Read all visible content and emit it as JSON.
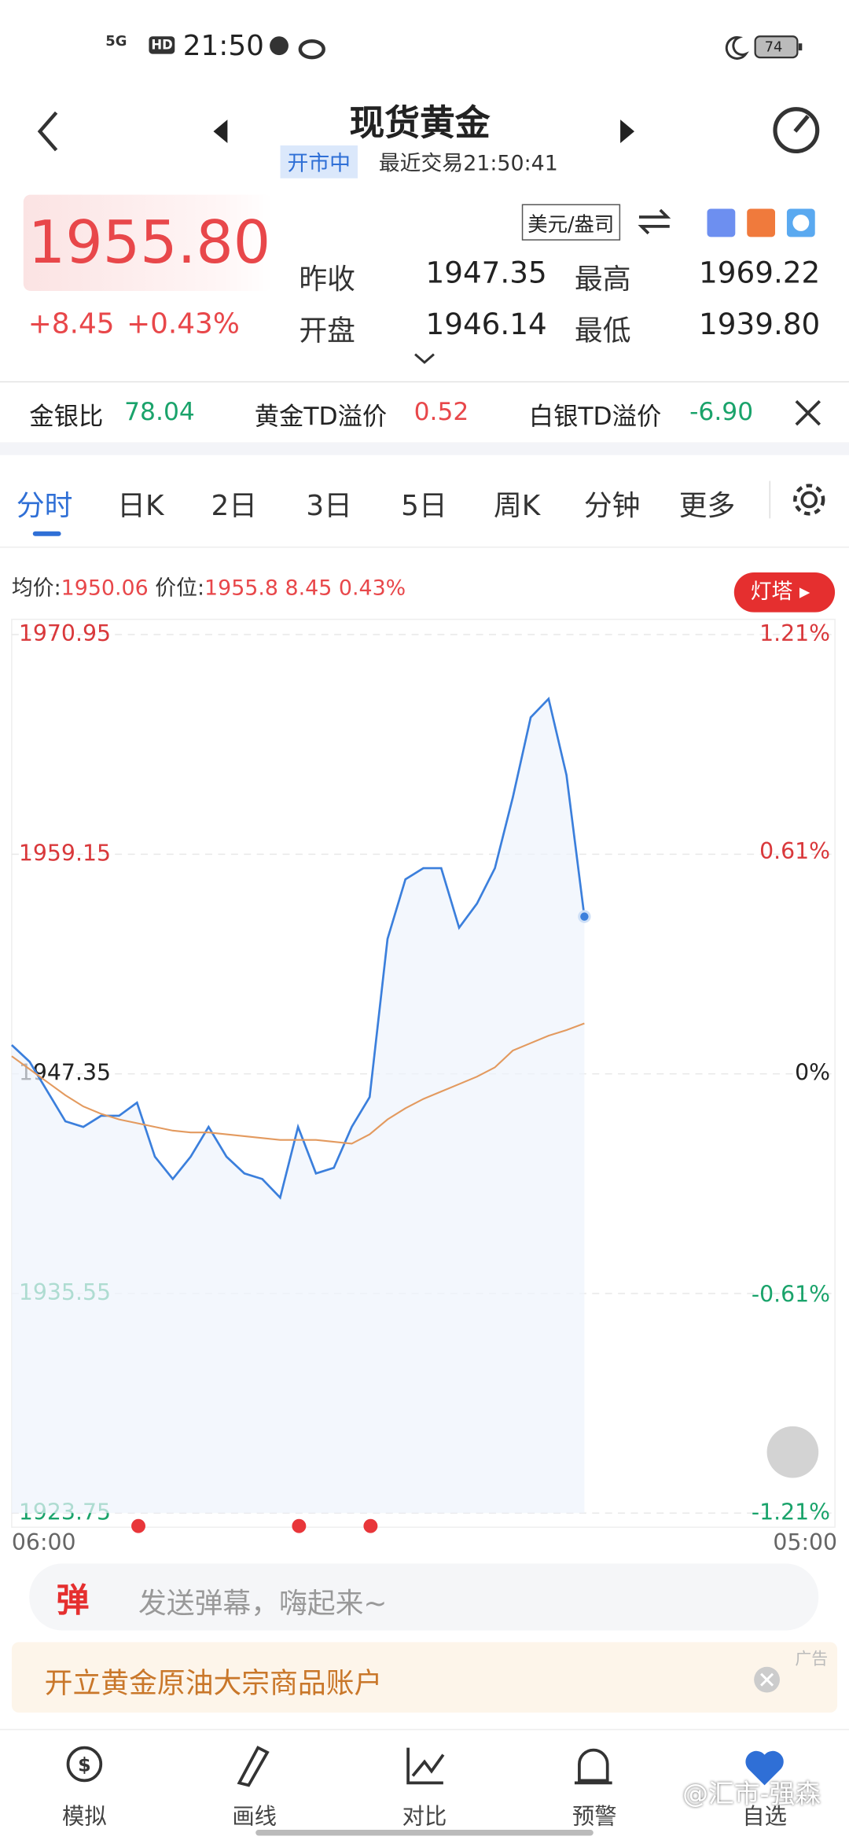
{
  "status_bar": {
    "signal": "5G",
    "hd": "HD",
    "time": "21:50",
    "battery": "74"
  },
  "header": {
    "title": "现货黄金",
    "status": "开市中",
    "last_trade": "最近交易21:50:41"
  },
  "quote": {
    "price": "1955.80",
    "change": "+8.45",
    "change_pct": "+0.43%",
    "unit": "美元/盎司",
    "stats": [
      {
        "label": "昨收",
        "value": "1947.35"
      },
      {
        "label": "最高",
        "value": "1969.22"
      },
      {
        "label": "开盘",
        "value": "1946.14"
      },
      {
        "label": "最低",
        "value": "1939.80"
      }
    ]
  },
  "ticker": [
    {
      "label": "金银比",
      "value": "78.04"
    },
    {
      "label": "黄金TD溢价",
      "value": "0.52"
    },
    {
      "label": "白银TD溢价",
      "value": "-6.90"
    }
  ],
  "tabs": [
    "分时",
    "日K",
    "2日",
    "3日",
    "5日",
    "周K",
    "分钟",
    "更多"
  ],
  "info": {
    "avg_label": "均价:",
    "avg": "1950.06",
    "price_label": "价位:",
    "price": "1955.8",
    "change": "8.45",
    "change_pct": "0.43%",
    "badge": "灯塔"
  },
  "chart_data": {
    "type": "line",
    "categories": [
      "06:00",
      null,
      null,
      null,
      null,
      null,
      null,
      null,
      null,
      null,
      null,
      null,
      null,
      null,
      null,
      null,
      null,
      null,
      null,
      null,
      null,
      null,
      null,
      null,
      null,
      null,
      null,
      null,
      null,
      null,
      null,
      null,
      null,
      null,
      null,
      null,
      null,
      null,
      null,
      null,
      null,
      null,
      null,
      null,
      null,
      null,
      "05:00"
    ],
    "series": [
      {
        "color": "#3b7fdc",
        "values": [
          1948.9,
          1948.0,
          1946.4,
          1944.8,
          1944.5,
          1945.1,
          1945.1,
          1945.8,
          1942.9,
          1941.7,
          1942.9,
          1944.5,
          1942.9,
          1942.0,
          1941.7,
          1940.7,
          1944.5,
          1942.0,
          1942.3,
          1944.5,
          1946.1,
          1954.6,
          1957.8,
          1958.4,
          1958.4,
          1955.2,
          1956.5,
          1958.4,
          1962.2,
          1966.5,
          1967.5,
          1963.4,
          1955.8,
          null,
          null,
          null,
          null,
          null,
          null,
          null,
          null,
          null,
          null,
          null,
          null,
          null,
          null
        ]
      },
      {
        "color": "#e39a5f",
        "values": [
          1948.3,
          1947.6,
          1946.9,
          1946.2,
          1945.6,
          1945.2,
          1944.9,
          1944.7,
          1944.5,
          1944.3,
          1944.2,
          1944.2,
          1944.1,
          1944.0,
          1943.9,
          1943.8,
          1943.8,
          1943.8,
          1943.7,
          1943.6,
          1944.1,
          1944.9,
          1945.5,
          1946.0,
          1946.4,
          1946.8,
          1947.2,
          1947.7,
          1948.6,
          1949.0,
          1949.4,
          1949.7,
          1950.06,
          null,
          null,
          null,
          null,
          null,
          null,
          null,
          null,
          null,
          null,
          null,
          null,
          null,
          null
        ]
      }
    ],
    "ylim": [
      1923.75,
      1970.95
    ],
    "yticks": [
      1923.75,
      1935.55,
      1947.35,
      1959.15,
      1970.95
    ],
    "y2lim": [
      -1.21,
      1.21
    ],
    "y2ticks": [
      {
        "value": -1.21,
        "label": "-1.21%"
      },
      {
        "value": -0.61,
        "label": "-0.61%"
      },
      {
        "value": 0,
        "label": "0%"
      },
      {
        "value": 0.61,
        "label": "0.61%"
      },
      {
        "value": 1.21,
        "label": "1.21%"
      }
    ],
    "grid": true
  },
  "danmaku": {
    "icon": "弹",
    "placeholder": "发送弹幕，嗨起来~"
  },
  "ad": {
    "text": "开立黄金原油大宗商品账户",
    "tag": "广告"
  },
  "nav": [
    "模拟",
    "画线",
    "对比",
    "预警",
    "自选"
  ],
  "watermark": "@汇市-强森"
}
